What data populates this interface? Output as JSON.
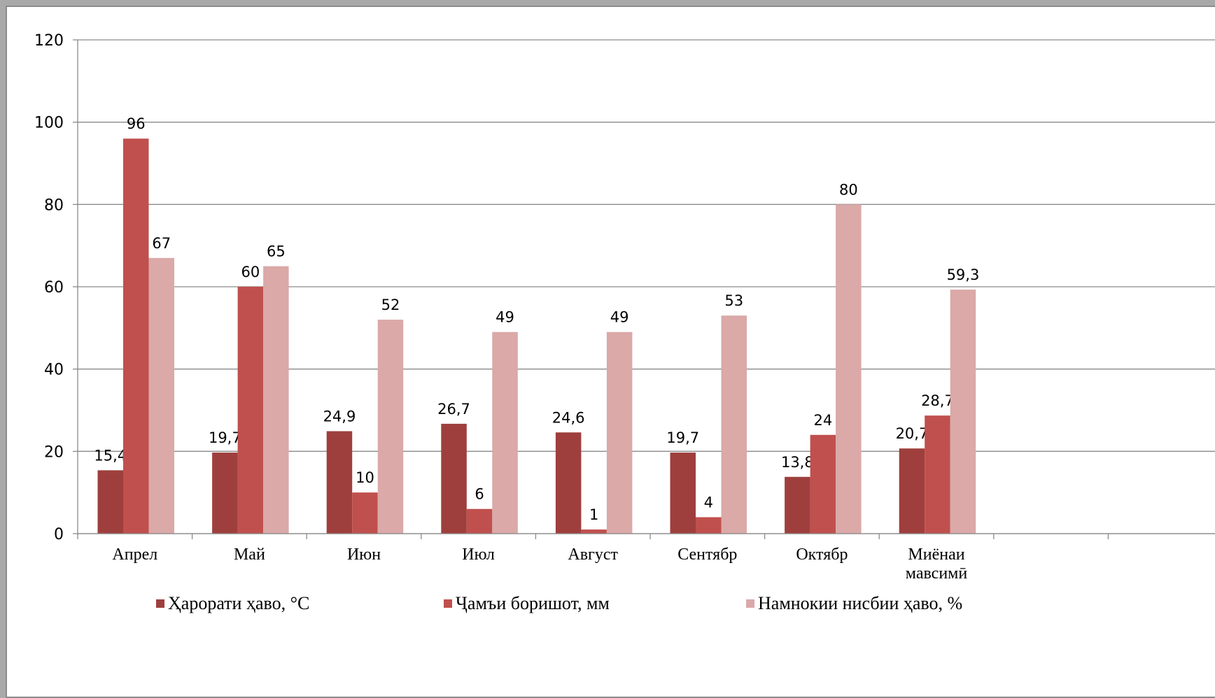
{
  "chart_data": {
    "type": "bar",
    "categories": [
      "Апрел",
      "Май",
      "Июн",
      "Июл",
      "Август",
      "Сентябр",
      "Октябр",
      "Миёнаи мавсимӣ"
    ],
    "series": [
      {
        "name": "Ҳарорати ҳаво, °С",
        "color": "#9e3f3d",
        "values": [
          15.4,
          19.7,
          24.9,
          26.7,
          24.6,
          19.7,
          13.8,
          20.7
        ],
        "labels": [
          "15,4",
          "19,7",
          "24,9",
          "26,7",
          "24,6",
          "19,7",
          "13,8",
          "20,7"
        ]
      },
      {
        "name": "Ҷамъи боришот, мм",
        "color": "#c0504d",
        "values": [
          96,
          60,
          10,
          6,
          1,
          4,
          24,
          28.7
        ],
        "labels": [
          "96",
          "60",
          "10",
          "6",
          "1",
          "4",
          "24",
          "28,7"
        ]
      },
      {
        "name": "Намнокии нисбии ҳаво, %",
        "color": "#daa9a8",
        "values": [
          67,
          65,
          52,
          49,
          49,
          53,
          80,
          59.3
        ],
        "labels": [
          "67",
          "65",
          "52",
          "49",
          "49",
          "53",
          "80",
          "59,3"
        ]
      }
    ],
    "yticks": [
      "0",
      "20",
      "40",
      "60",
      "80",
      "100",
      "120"
    ],
    "ylim": [
      0,
      120
    ],
    "grid": true,
    "legend_position": "bottom"
  }
}
